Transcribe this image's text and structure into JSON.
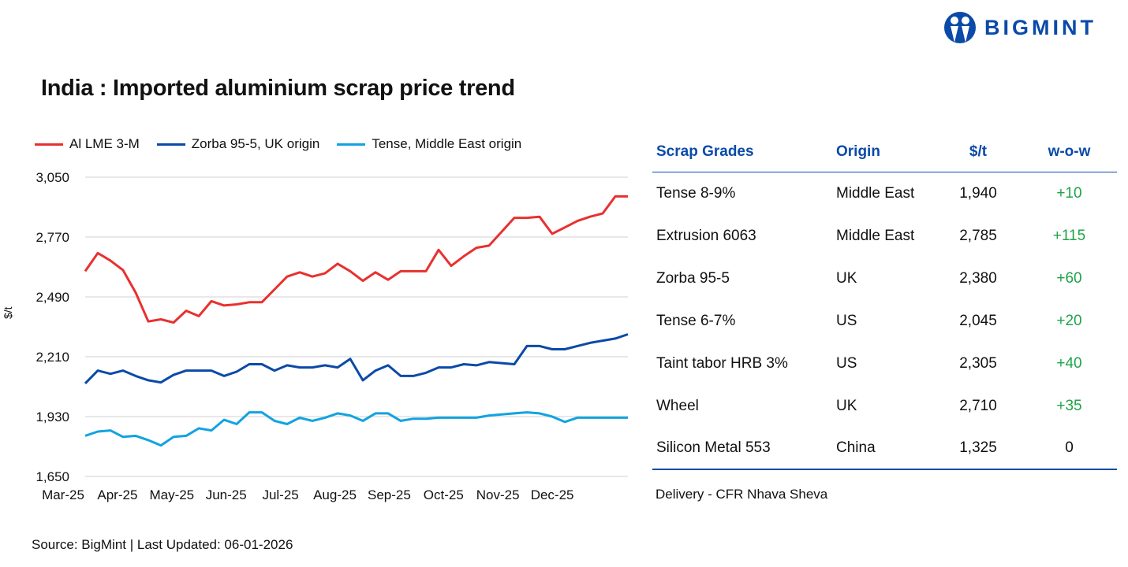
{
  "logo": {
    "text": "BIGMINT",
    "color": "#0a4aa8"
  },
  "title": "India : Imported aluminium scrap price trend",
  "source": "Source: BigMint | Last Updated: 06-01-2026",
  "chart_data": {
    "type": "line",
    "title": "India : Imported aluminium scrap price trend",
    "ylabel": "$/t",
    "ylim": [
      1650,
      3050
    ],
    "yticks": [
      "3,050",
      "2,770",
      "2,490",
      "2,210",
      "1,930",
      "1,650"
    ],
    "ytick_values": [
      3050,
      2770,
      2490,
      2210,
      1930,
      1650
    ],
    "xtick_labels": [
      "Mar-25",
      "Apr-25",
      "May-25",
      "Jun-25",
      "Jul-25",
      "Aug-25",
      "Sep-25",
      "Oct-25",
      "Nov-25",
      "Dec-25"
    ],
    "grid": "horizontal",
    "legend_placement": "top-left",
    "series": [
      {
        "name": "Al LME 3-M",
        "color": "#e8312f",
        "values": [
          2610,
          2695,
          2660,
          2615,
          2510,
          2375,
          2385,
          2370,
          2425,
          2400,
          2470,
          2450,
          2455,
          2465,
          2465,
          2525,
          2585,
          2605,
          2585,
          2600,
          2645,
          2610,
          2565,
          2605,
          2570,
          2610,
          2610,
          2610,
          2710,
          2635,
          2680,
          2720,
          2730,
          2795,
          2860,
          2860,
          2865,
          2785,
          2815,
          2845,
          2865,
          2880,
          2960,
          2960
        ]
      },
      {
        "name": "Zorba 95-5, UK origin",
        "color": "#0a4aa8",
        "values": [
          2085,
          2145,
          2130,
          2145,
          2120,
          2100,
          2090,
          2125,
          2145,
          2145,
          2145,
          2120,
          2140,
          2175,
          2175,
          2145,
          2170,
          2160,
          2160,
          2170,
          2160,
          2200,
          2100,
          2145,
          2170,
          2120,
          2120,
          2135,
          2160,
          2160,
          2175,
          2170,
          2185,
          2180,
          2175,
          2260,
          2260,
          2245,
          2245,
          2260,
          2275,
          2285,
          2295,
          2315
        ]
      },
      {
        "name": "Tense, Middle East origin",
        "color": "#12a3e0",
        "values": [
          1840,
          1860,
          1865,
          1835,
          1840,
          1820,
          1795,
          1835,
          1840,
          1875,
          1865,
          1915,
          1895,
          1950,
          1950,
          1910,
          1895,
          1925,
          1910,
          1925,
          1945,
          1935,
          1910,
          1945,
          1945,
          1910,
          1920,
          1920,
          1925,
          1925,
          1925,
          1925,
          1935,
          1940,
          1945,
          1950,
          1945,
          1930,
          1905,
          1925,
          1925,
          1925,
          1925,
          1925
        ]
      }
    ]
  },
  "table": {
    "headers": [
      "Scrap Grades",
      "Origin",
      "$/t",
      "w-o-w"
    ],
    "rows": [
      [
        "Tense 8-9%",
        "Middle East",
        "1,940",
        "+10"
      ],
      [
        "Extrusion 6063",
        "Middle East",
        "2,785",
        "+115"
      ],
      [
        "Zorba 95-5",
        "UK",
        "2,380",
        "+60"
      ],
      [
        "Tense 6-7%",
        "US",
        "2,045",
        "+20"
      ],
      [
        "Taint tabor HRB 3%",
        "US",
        "2,305",
        "+40"
      ],
      [
        "Wheel",
        "UK",
        "2,710",
        "+35"
      ],
      [
        "Silicon Metal 553",
        "China",
        "1,325",
        "0"
      ]
    ],
    "positive_color": "#1fa34a",
    "note": "Delivery - CFR Nhava Sheva"
  }
}
